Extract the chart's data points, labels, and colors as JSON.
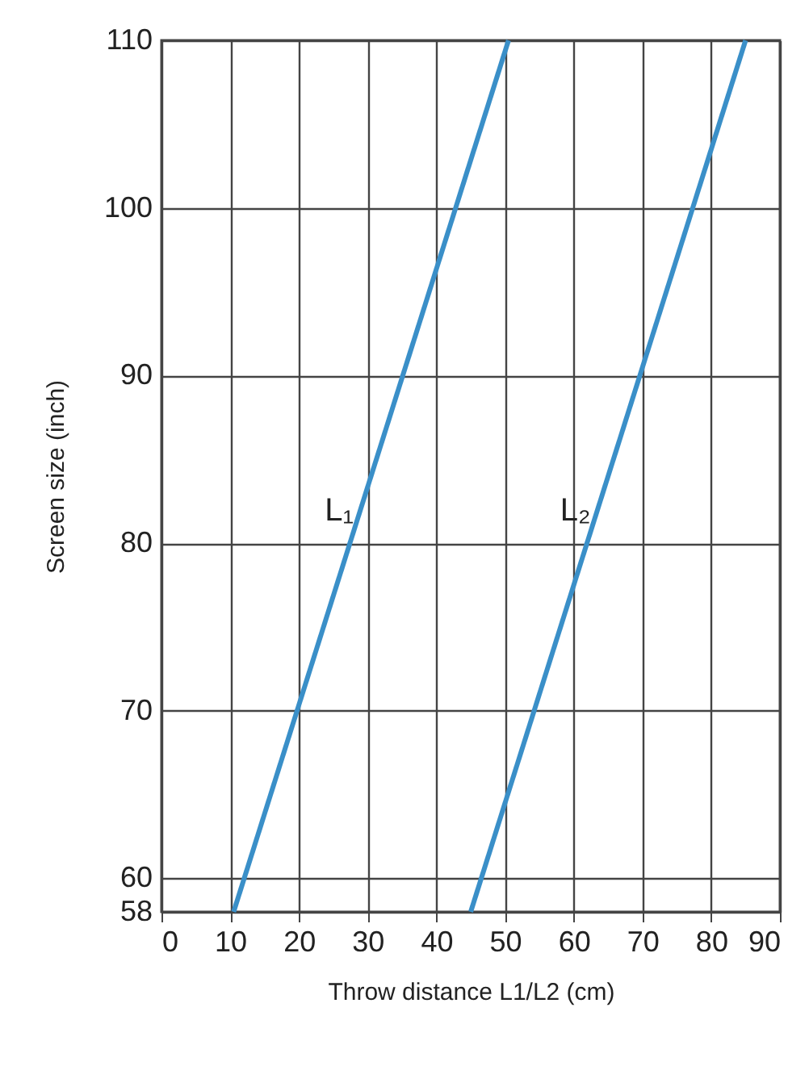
{
  "chart_data": {
    "type": "line",
    "xlabel": "Throw distance L1/L2 (cm)",
    "ylabel": "Screen size (inch)",
    "series": [
      {
        "name": "L₁",
        "color": "#3a8fc8",
        "x": [
          10.5,
          50.5
        ],
        "values": [
          58,
          110
        ]
      },
      {
        "name": "L₂",
        "color": "#3a8fc8",
        "x": [
          45,
          85
        ],
        "values": [
          58,
          110
        ]
      }
    ],
    "xlim": [
      0,
      90
    ],
    "xticks": [
      0,
      10,
      20,
      30,
      40,
      50,
      60,
      70,
      80,
      90
    ],
    "ylim": [
      58,
      110
    ],
    "yticks": [
      58,
      60,
      70,
      80,
      90,
      100,
      110
    ],
    "grid": true,
    "marker": "none",
    "line_style": "solid",
    "legend": false
  }
}
